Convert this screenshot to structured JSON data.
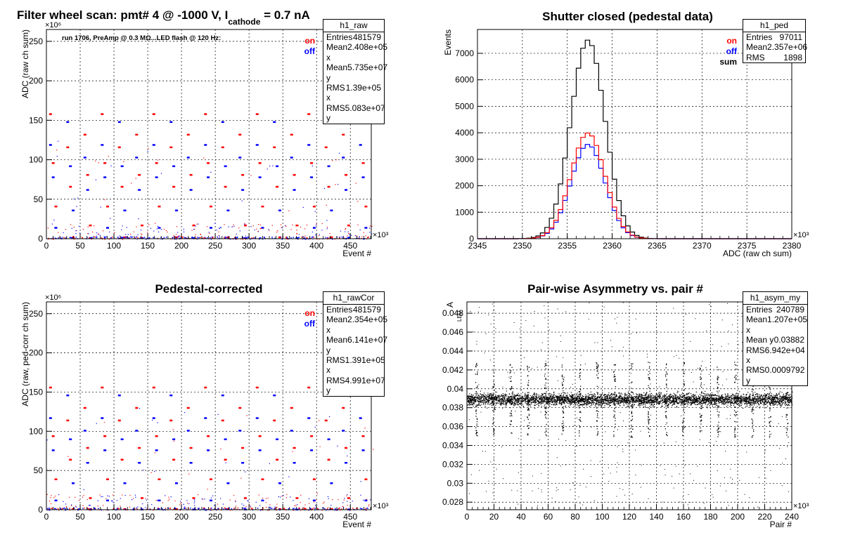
{
  "colors": {
    "on": "#ff0000",
    "off": "#0000ff",
    "sum": "#000000",
    "grid": "#000000"
  },
  "chart_data": [
    {
      "id": "raw",
      "type": "scatter",
      "title": "Filter wheel scan: pmt#   4 @ -1000 V, I",
      "title_sub": "cathode",
      "title_tail": " = 0.7 nA",
      "xlabel": "Event #",
      "ylabel": "ADC (raw ch sum)",
      "x_multiplier": "×10³",
      "y_multiplier": "×10⁶",
      "xlim": [
        0,
        481
      ],
      "ylim": [
        0,
        265
      ],
      "xticks": [
        0,
        50,
        100,
        150,
        200,
        250,
        300,
        350,
        400,
        450
      ],
      "yticks": [
        0,
        50,
        100,
        150,
        200,
        250
      ],
      "grid": true,
      "annotation": "run 1706, PreAmp @ 0.3 MΩ...LED flash @  120 Hz:",
      "legend": [
        {
          "label": "on",
          "color": "#ff0000"
        },
        {
          "label": "off",
          "color": "#0000ff"
        }
      ],
      "stats": {
        "name": "h1_raw",
        "rows": [
          [
            "Entries",
            "481579"
          ],
          [
            "Mean x",
            "2.408e+05"
          ],
          [
            "Mean y",
            "5.735e+07"
          ],
          [
            "RMS x",
            "1.39e+05"
          ],
          [
            "RMS y",
            "5.083e+07"
          ]
        ]
      },
      "levels_on": [
        158,
        132,
        116,
        96,
        81,
        66,
        41,
        17,
        2
      ],
      "levels_off": [
        148,
        119,
        103,
        92,
        78,
        62,
        36,
        14,
        1
      ],
      "period": 25.5
    },
    {
      "id": "ped",
      "type": "line",
      "title": "Shutter closed (pedestal data)",
      "xlabel": "ADC (raw ch sum)",
      "ylabel": "Events",
      "x_multiplier": "×10³",
      "xlim": [
        2345,
        2380
      ],
      "ylim": [
        0,
        7900
      ],
      "xticks": [
        2345,
        2350,
        2355,
        2360,
        2365,
        2370,
        2375,
        2380
      ],
      "yticks": [
        0,
        1000,
        2000,
        3000,
        4000,
        5000,
        6000,
        7000
      ],
      "grid": true,
      "legend": [
        {
          "label": "on",
          "color": "#ff0000"
        },
        {
          "label": "off",
          "color": "#0000ff"
        },
        {
          "label": "sum",
          "color": "#000000"
        }
      ],
      "stats": {
        "name": "h1_ped",
        "rows": [
          [
            "Entries",
            "97011"
          ],
          [
            "Mean",
            "2.357e+06"
          ],
          [
            "RMS",
            "1898"
          ]
        ]
      },
      "series": [
        {
          "name": "on",
          "color": "#ff0000",
          "mean": 2357.3,
          "sigma": 1.9,
          "peak": 3990
        },
        {
          "name": "off",
          "color": "#0000ff",
          "mean": 2357.3,
          "sigma": 1.9,
          "peak": 3560
        },
        {
          "name": "sum",
          "color": "#000000",
          "mean": 2357.3,
          "sigma": 1.9,
          "peak": 7500
        }
      ]
    },
    {
      "id": "rawCor",
      "type": "scatter",
      "title": "Pedestal-corrected",
      "xlabel": "Event #",
      "ylabel": "ADC (raw, ped-corr ch sum)",
      "x_multiplier": "×10³",
      "y_multiplier": "×10⁶",
      "xlim": [
        0,
        481
      ],
      "ylim": [
        0,
        265
      ],
      "xticks": [
        0,
        50,
        100,
        150,
        200,
        250,
        300,
        350,
        400,
        450
      ],
      "yticks": [
        0,
        50,
        100,
        150,
        200,
        250
      ],
      "grid": true,
      "legend": [
        {
          "label": "on",
          "color": "#ff0000"
        },
        {
          "label": "off",
          "color": "#0000ff"
        }
      ],
      "stats": {
        "name": "h1_rawCor",
        "rows": [
          [
            "Entries",
            "481579"
          ],
          [
            "Mean x",
            "2.354e+05"
          ],
          [
            "Mean y",
            "6.141e+07"
          ],
          [
            "RMS x",
            "1.391e+05"
          ],
          [
            "RMS y",
            "4.991e+07"
          ]
        ]
      },
      "levels_on": [
        156,
        130,
        114,
        94,
        79,
        64,
        39,
        15,
        1
      ],
      "levels_off": [
        146,
        117,
        101,
        90,
        76,
        60,
        34,
        12,
        0.5
      ],
      "period": 25.5
    },
    {
      "id": "asym",
      "type": "scatter",
      "title": "Pair-wise Asymmetry vs. pair #",
      "xlabel": "Pair #",
      "ylabel": "A",
      "ylabel_sub": "LED",
      "x_multiplier": "×10³",
      "xlim": [
        0,
        240
      ],
      "ylim": [
        0.0272,
        0.0492
      ],
      "xticks": [
        0,
        20,
        40,
        60,
        80,
        100,
        120,
        140,
        160,
        180,
        200,
        220,
        240
      ],
      "yticks": [
        0.028,
        0.03,
        0.032,
        0.034,
        0.036,
        0.038,
        0.04,
        0.042,
        0.044,
        0.046,
        0.048
      ],
      "ytick_labels": [
        "0.028",
        "0.03",
        "0.032",
        "0.034",
        "0.036",
        "0.038",
        "0.04",
        "0.042",
        "0.044",
        "0.046",
        "0.048"
      ],
      "grid": true,
      "stats": {
        "name": "h1_asym_my",
        "rows": [
          [
            "Entries",
            "240789"
          ],
          [
            "Mean x",
            "1.207e+05"
          ],
          [
            "Mean y",
            "0.03882"
          ],
          [
            "RMS x",
            "6.942e+04"
          ],
          [
            "RMS y",
            "0.0009792"
          ]
        ]
      },
      "band_center": 0.0389,
      "band_halfwidth": 0.0008,
      "spike_period": 12.75
    }
  ]
}
